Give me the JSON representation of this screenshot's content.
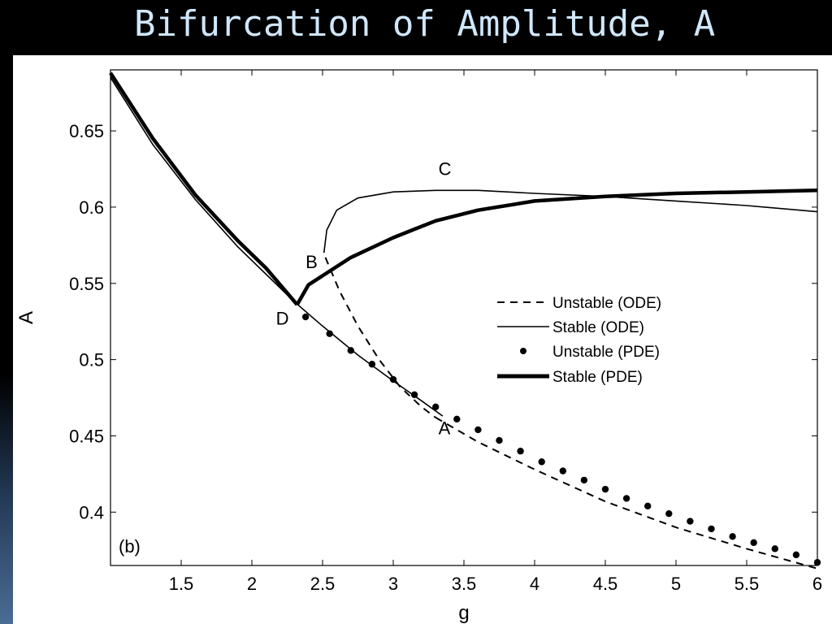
{
  "slide": {
    "title": "Bifurcation of Amplitude, A"
  },
  "chart_data": {
    "type": "line",
    "panel_label": "(b)",
    "xlabel": "g",
    "ylabel": "A",
    "xlim": [
      1.0,
      6.0
    ],
    "ylim": [
      0.365,
      0.69
    ],
    "xticks": [
      1.5,
      2,
      2.5,
      3,
      3.5,
      4,
      4.5,
      5,
      5.5,
      6
    ],
    "xtick_labels": [
      "1.5",
      "2",
      "2.5",
      "3",
      "3.5",
      "4",
      "4.5",
      "5",
      "5.5",
      "6"
    ],
    "yticks": [
      0.4,
      0.45,
      0.5,
      0.55,
      0.6,
      0.65
    ],
    "ytick_labels": [
      "0.4",
      "0.45",
      "0.5",
      "0.55",
      "0.6",
      "0.65"
    ],
    "grid": false,
    "legend_position": "center-right",
    "series": [
      {
        "name": "Unstable (ODE)",
        "style": "dashed",
        "segments": [
          {
            "x": [
              2.52,
              2.62,
              2.75,
              2.9,
              3.05,
              3.2,
              3.3
            ],
            "y": [
              0.567,
              0.545,
              0.522,
              0.5,
              0.482,
              0.469,
              0.462
            ]
          },
          {
            "x": [
              3.3,
              3.6,
              4.0,
              4.5,
              5.0,
              5.5,
              6.0
            ],
            "y": [
              0.462,
              0.446,
              0.428,
              0.407,
              0.39,
              0.376,
              0.363
            ]
          }
        ]
      },
      {
        "name": "Stable (ODE)",
        "style": "solid-thin",
        "segments": [
          {
            "x": [
              1.0,
              1.3,
              1.6,
              1.9,
              2.1,
              2.3,
              2.5,
              2.75,
              3.0,
              3.2,
              3.35
            ],
            "y": [
              0.685,
              0.641,
              0.605,
              0.574,
              0.556,
              0.538,
              0.522,
              0.503,
              0.486,
              0.473,
              0.463
            ]
          },
          {
            "x": [
              2.51,
              2.53,
              2.6,
              2.75,
              3.0,
              3.3,
              3.6,
              4.0,
              4.5,
              5.0,
              5.5,
              6.0
            ],
            "y": [
              0.57,
              0.585,
              0.598,
              0.606,
              0.61,
              0.611,
              0.611,
              0.609,
              0.607,
              0.604,
              0.601,
              0.597
            ]
          }
        ]
      },
      {
        "name": "Unstable (PDE)",
        "style": "dots",
        "segments": [
          {
            "x": [
              2.38,
              2.55,
              2.7,
              2.85,
              3.0,
              3.15,
              3.3,
              3.45,
              3.6,
              3.75,
              3.9,
              4.05,
              4.2,
              4.35,
              4.5,
              4.65,
              4.8,
              4.95,
              5.1,
              5.25,
              5.4,
              5.55,
              5.7,
              5.85,
              6.0
            ],
            "y": [
              0.528,
              0.517,
              0.506,
              0.497,
              0.487,
              0.477,
              0.469,
              0.461,
              0.454,
              0.447,
              0.44,
              0.433,
              0.427,
              0.421,
              0.415,
              0.409,
              0.404,
              0.399,
              0.394,
              0.389,
              0.384,
              0.38,
              0.376,
              0.372,
              0.367
            ]
          }
        ]
      },
      {
        "name": "Stable (PDE)",
        "style": "solid-thick",
        "segments": [
          {
            "x": [
              1.0,
              1.3,
              1.6,
              1.9,
              2.1,
              2.32
            ],
            "y": [
              0.688,
              0.645,
              0.608,
              0.578,
              0.56,
              0.536
            ]
          },
          {
            "x": [
              2.32,
              2.4,
              2.5,
              2.7,
              3.0,
              3.3,
              3.6,
              4.0,
              4.5,
              5.0,
              5.5,
              6.0
            ],
            "y": [
              0.536,
              0.549,
              0.555,
              0.567,
              0.58,
              0.591,
              0.598,
              0.604,
              0.607,
              0.609,
              0.61,
              0.611
            ]
          }
        ]
      }
    ],
    "annotations": [
      {
        "text": "C",
        "x": 3.32,
        "y": 0.621
      },
      {
        "text": "B",
        "x": 2.38,
        "y": 0.56
      },
      {
        "text": "D",
        "x": 2.17,
        "y": 0.523
      },
      {
        "text": "A",
        "x": 3.32,
        "y": 0.451
      }
    ]
  }
}
